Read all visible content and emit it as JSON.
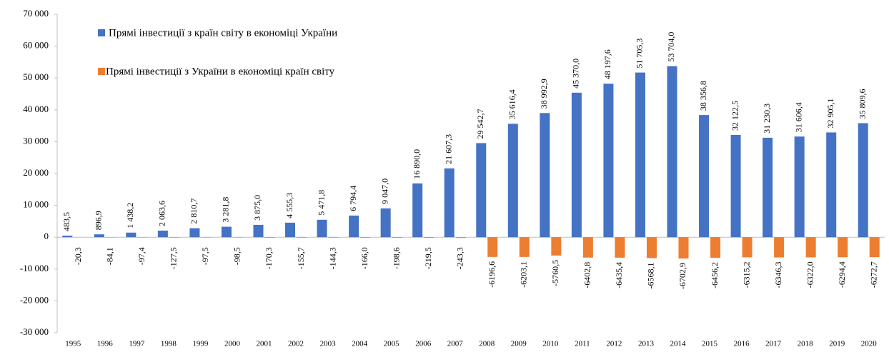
{
  "chart_data": {
    "type": "bar",
    "categories": [
      "1995",
      "1996",
      "1997",
      "1998",
      "1999",
      "2000",
      "2001",
      "2002",
      "2003",
      "2004",
      "2005",
      "2006",
      "2007",
      "2008",
      "2009",
      "2010",
      "2011",
      "2012",
      "2013",
      "2014",
      "2015",
      "2016",
      "2017",
      "2018",
      "2019",
      "2020"
    ],
    "series": [
      {
        "name": "Прямі інвестиції з країн світу в економіці України",
        "color": "#4472c4",
        "values": [
          483.5,
          896.9,
          1438.2,
          2063.6,
          2810.7,
          3281.8,
          3875.0,
          4555.3,
          5471.8,
          6794.4,
          9047.0,
          16890.0,
          21607.3,
          29542.7,
          35616.4,
          38992.9,
          45370.0,
          48197.6,
          51705.3,
          53704.0,
          38356.8,
          32122.5,
          31230.3,
          31606.4,
          32905.1,
          35809.6
        ],
        "value_labels": [
          "483,5",
          "896,9",
          "1 438,2",
          "2 063,6",
          "2 810,7",
          "3 281,8",
          "3 875,0",
          "4 555,3",
          "5 471,8",
          "6 794,4",
          "9 047,0",
          "16 890,0",
          "21 607,3",
          "29 542,7",
          "35 616,4",
          "38 992,9",
          "45 370,0",
          "48 197,6",
          "51 705,3",
          "53 704,0",
          "38 356,8",
          "32 122,5",
          "31 230,3",
          "31 606,4",
          "32 905,1",
          "35 809,6"
        ]
      },
      {
        "name": "Прямі інвестиції з України в економіці країн світу",
        "color": "#ed7d31",
        "values": [
          -20.3,
          -84.1,
          -97.4,
          -127.5,
          -97.5,
          -98.5,
          -170.3,
          -155.7,
          -144.3,
          -166.0,
          -198.6,
          -219.5,
          -243.3,
          -6196.6,
          -6203.1,
          -5760.5,
          -6402.8,
          -6435.4,
          -6568.1,
          -6702.9,
          -6456.2,
          -6315.2,
          -6346.3,
          -6322.0,
          -6294.4,
          -6272.7
        ],
        "value_labels": [
          "-20,3",
          "-84,1",
          "-97,4",
          "-127,5",
          "-97,5",
          "-98,5",
          "-170,3",
          "-155,7",
          "-144,3",
          "-166,0",
          "-198,6",
          "-219,5",
          "-243,3",
          "-6196,6",
          "-6203,1",
          "-5760,5",
          "-6402,8",
          "-6435,4",
          "-6568,1",
          "-6702,9",
          "-6456,2",
          "-6315,2",
          "-6346,3",
          "-6322,0",
          "-6294,4",
          "-6272,7"
        ]
      }
    ],
    "ylim": [
      -30000,
      70000
    ],
    "yticks": [
      {
        "value": -30000,
        "label": "-30 000"
      },
      {
        "value": -20000,
        "label": "-20 000"
      },
      {
        "value": -10000,
        "label": "-10 000"
      },
      0,
      {
        "value": 10000,
        "label": "10 000"
      },
      {
        "value": 20000,
        "label": "20 000"
      },
      {
        "value": 30000,
        "label": "30 000"
      },
      {
        "value": 40000,
        "label": "40 000"
      },
      {
        "value": 50000,
        "label": "50 000"
      },
      {
        "value": 60000,
        "label": "60 000"
      },
      {
        "value": 70000,
        "label": "70 000"
      }
    ],
    "legend": "top-left"
  }
}
